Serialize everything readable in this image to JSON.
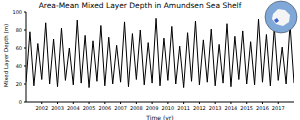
{
  "chart_data": {
    "type": "line",
    "title": "Area-Mean Mixed Layer Depth in Amundsen Sea Shelf",
    "x_label": "Time (yr)",
    "y_label": "Mixed Layer Depth (m)",
    "x": [
      2001,
      2001.25,
      2001.5,
      2001.75,
      2002,
      2002.25,
      2002.5,
      2002.75,
      2003,
      2003.25,
      2003.5,
      2003.75,
      2004,
      2004.25,
      2004.5,
      2004.75,
      2005,
      2005.25,
      2005.5,
      2005.75,
      2006,
      2006.25,
      2006.5,
      2006.75,
      2007,
      2007.25,
      2007.5,
      2007.75,
      2008,
      2008.25,
      2008.5,
      2008.75,
      2009,
      2009.25,
      2009.5,
      2009.75,
      2010,
      2010.25,
      2010.5,
      2010.75,
      2011,
      2011.25,
      2011.5,
      2011.75,
      2012,
      2012.25,
      2012.5,
      2012.75,
      2013,
      2013.25,
      2013.5,
      2013.75,
      2014,
      2014.25,
      2014.5,
      2014.75,
      2015,
      2015.25,
      2015.5,
      2015.75,
      2016,
      2016.25,
      2016.5,
      2016.75,
      2017,
      2017.25,
      2017.5,
      2017.75,
      2018
    ],
    "values": [
      22,
      78,
      18,
      65,
      25,
      88,
      20,
      70,
      17,
      82,
      24,
      60,
      19,
      91,
      21,
      74,
      16,
      68,
      23,
      85,
      18,
      72,
      20,
      63,
      22,
      89,
      17,
      76,
      25,
      80,
      19,
      66,
      21,
      93,
      18,
      71,
      24,
      84,
      20,
      62,
      16,
      77,
      23,
      90,
      19,
      69,
      22,
      81,
      18,
      64,
      21,
      87,
      17,
      73,
      25,
      79,
      20,
      67,
      19,
      92,
      22,
      75,
      18,
      83,
      24,
      61,
      20,
      86,
      21
    ],
    "color": "#000000",
    "xlim": [
      2001,
      2018
    ],
    "xticks": [
      2002,
      2003,
      2004,
      2005,
      2006,
      2007,
      2008,
      2009,
      2010,
      2011,
      2012,
      2013,
      2014,
      2015,
      2016,
      2017
    ],
    "ylim": [
      0,
      100
    ],
    "yticks": [
      0,
      20,
      40,
      60,
      80,
      100
    ],
    "grid": false
  }
}
